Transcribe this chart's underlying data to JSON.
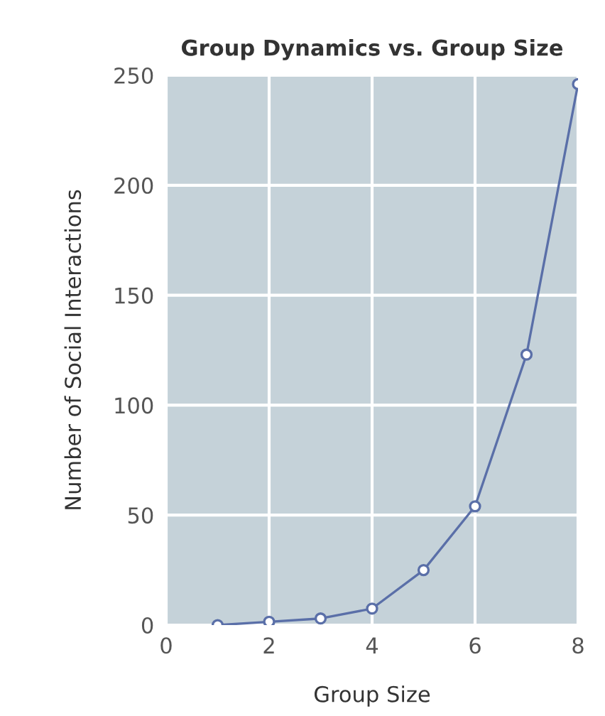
{
  "chart_data": {
    "type": "line",
    "title": "Group Dynamics vs. Group Size",
    "xlabel": "Group Size",
    "ylabel": "Number of Social Interactions",
    "x": [
      1,
      2,
      3,
      4,
      5,
      6,
      7,
      8
    ],
    "series": [
      {
        "color": "#5a6fa8",
        "values": [
          0,
          1.5,
          3,
          7.5,
          25,
          54,
          123,
          246
        ]
      }
    ],
    "xlim": [
      0,
      8
    ],
    "xticks": [
      0,
      2,
      4,
      6,
      8
    ],
    "ylim": [
      0,
      250
    ],
    "yticks": [
      0,
      50,
      100,
      150,
      200,
      250
    ],
    "grid": true,
    "marker": "circle",
    "line_style": "solid",
    "legend": false
  }
}
